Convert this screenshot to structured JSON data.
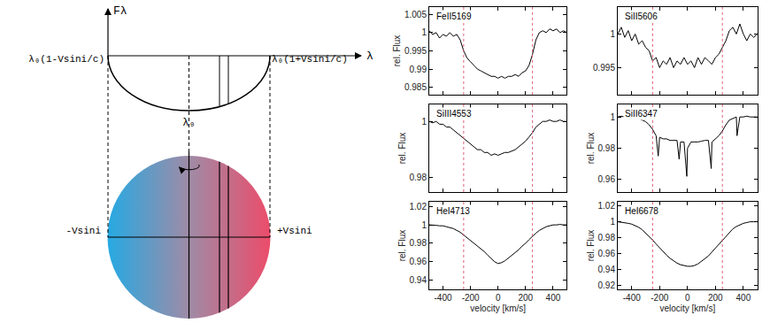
{
  "diagram": {
    "y_label": "Fλ",
    "x_label": "λ",
    "left_edge": "λ₀(1-Vsini/c)",
    "right_edge": "λ₀(1+Vsini/c)",
    "center": "λ₀",
    "left_velocity": "-Vsini",
    "right_velocity": "+Vsini"
  },
  "chart_data": [
    {
      "type": "line",
      "title": "FeII5169",
      "ylabel": "rel. Flux",
      "tick_labels": "y",
      "grid": false,
      "color": "#000000",
      "xlim": [
        -500,
        500
      ],
      "xticks": [
        -400,
        -200,
        0,
        200,
        400
      ],
      "ylim": [
        0.983,
        1.007
      ],
      "yticks": [
        0.985,
        0.99,
        0.995,
        1,
        1.005
      ],
      "vlines": [
        -250,
        250
      ],
      "x": [
        -500,
        -475,
        -450,
        -425,
        -400,
        -375,
        -350,
        -325,
        -300,
        -275,
        -250,
        -225,
        -200,
        -175,
        -150,
        -125,
        -100,
        -75,
        -50,
        -25,
        0,
        25,
        50,
        75,
        100,
        125,
        150,
        175,
        200,
        225,
        250,
        275,
        300,
        325,
        350,
        375,
        400,
        425,
        450,
        475,
        500
      ],
      "values": [
        1.0005,
        0.9995,
        1.0,
        0.9985,
        0.9995,
        0.999,
        1.0,
        0.999,
        0.9995,
        0.998,
        0.995,
        0.993,
        0.992,
        0.991,
        0.99,
        0.9895,
        0.989,
        0.9885,
        0.988,
        0.988,
        0.9875,
        0.988,
        0.9875,
        0.988,
        0.988,
        0.9885,
        0.988,
        0.989,
        0.9895,
        0.991,
        0.994,
        0.998,
        1.0,
        1.0005,
        1.0,
        1.001,
        1.0005,
        1.001,
        1.0,
        1.0005,
        1.0
      ]
    },
    {
      "type": "line",
      "title": "SiII5606",
      "tick_labels": "y",
      "grid": false,
      "color": "#000000",
      "xlim": [
        -500,
        500
      ],
      "xticks": [
        -400,
        -200,
        0,
        200,
        400
      ],
      "ylim": [
        0.991,
        1.004
      ],
      "yticks": [
        0.995,
        1
      ],
      "vlines": [
        -250,
        250
      ],
      "x": [
        -500,
        -475,
        -450,
        -425,
        -400,
        -375,
        -350,
        -325,
        -300,
        -275,
        -250,
        -225,
        -200,
        -175,
        -150,
        -125,
        -100,
        -75,
        -50,
        -25,
        0,
        25,
        50,
        75,
        100,
        125,
        150,
        175,
        200,
        225,
        250,
        275,
        300,
        325,
        350,
        375,
        400,
        425,
        450,
        475,
        500
      ],
      "values": [
        1.0,
        1.001,
        0.9995,
        1.0005,
        0.999,
        1.0,
        0.9985,
        0.999,
        0.998,
        0.9975,
        0.996,
        0.9965,
        0.995,
        0.996,
        0.9955,
        0.9965,
        0.995,
        0.996,
        0.9955,
        0.9965,
        0.9955,
        0.996,
        0.995,
        0.9965,
        0.9955,
        0.9965,
        0.996,
        0.9955,
        0.9965,
        0.997,
        0.998,
        0.999,
        1.0005,
        1.001,
        1.0,
        1.0015,
        1.0,
        0.999,
        1.0,
        0.9995,
        1.0
      ]
    },
    {
      "type": "line",
      "title": "SiIII4553",
      "ylabel": "rel. Flux",
      "tick_labels": "y",
      "grid": false,
      "color": "#000000",
      "xlim": [
        -500,
        500
      ],
      "xticks": [
        -400,
        -200,
        0,
        200,
        400
      ],
      "ylim": [
        0.975,
        1.006
      ],
      "yticks": [
        0.98,
        1
      ],
      "vlines": [
        -250,
        250
      ],
      "x": [
        -500,
        -475,
        -450,
        -425,
        -400,
        -375,
        -350,
        -325,
        -300,
        -275,
        -250,
        -225,
        -200,
        -175,
        -150,
        -125,
        -100,
        -75,
        -50,
        -25,
        0,
        25,
        50,
        75,
        100,
        125,
        150,
        175,
        200,
        225,
        250,
        275,
        300,
        325,
        350,
        375,
        400,
        425,
        450,
        475,
        500
      ],
      "values": [
        1.0,
        0.9995,
        1.0,
        0.999,
        0.999,
        0.998,
        0.998,
        0.997,
        0.996,
        0.995,
        0.994,
        0.993,
        0.992,
        0.991,
        0.99,
        0.99,
        0.989,
        0.989,
        0.988,
        0.9885,
        0.988,
        0.9885,
        0.989,
        0.989,
        0.9895,
        0.99,
        0.991,
        0.992,
        0.993,
        0.9945,
        0.996,
        0.998,
        0.999,
        1.0,
        1.0,
        1.0005,
        1.0,
        1.0,
        1.0005,
        1.0,
        1.0
      ]
    },
    {
      "type": "line",
      "title": "SiII6347",
      "ylabel": "rel. Flux",
      "tick_labels": "y",
      "grid": false,
      "color": "#000000",
      "xlim": [
        -500,
        500
      ],
      "xticks": [
        -400,
        -200,
        0,
        200,
        400
      ],
      "ylim": [
        0.952,
        1.008
      ],
      "yticks": [
        0.96,
        0.98,
        1
      ],
      "vlines": [
        -250,
        250
      ],
      "x": [
        -500,
        -475,
        -450,
        -425,
        -400,
        -375,
        -350,
        -325,
        -300,
        -275,
        -250,
        -225,
        -210,
        -200,
        -175,
        -150,
        -125,
        -100,
        -75,
        -60,
        -50,
        -25,
        -5,
        0,
        25,
        50,
        75,
        100,
        125,
        150,
        170,
        175,
        200,
        225,
        250,
        275,
        300,
        325,
        350,
        355,
        375,
        400,
        425,
        450,
        475,
        500
      ],
      "values": [
        1.0,
        1.0005,
        1.0,
        0.9995,
        1.0,
        0.999,
        0.999,
        0.998,
        0.997,
        0.995,
        0.992,
        0.988,
        0.975,
        0.987,
        0.986,
        0.986,
        0.985,
        0.985,
        0.985,
        0.973,
        0.984,
        0.984,
        0.962,
        0.98,
        0.984,
        0.984,
        0.984,
        0.9845,
        0.985,
        0.985,
        0.967,
        0.984,
        0.986,
        0.988,
        0.991,
        0.995,
        0.998,
        0.999,
        1.0,
        0.988,
        1.0,
        1.0,
        1.0005,
        1.0,
        1.0,
        1.0
      ]
    },
    {
      "type": "line",
      "title": "HeI4713",
      "ylabel": "rel. Flux",
      "xlabel": "velocity [km/s]",
      "grid": false,
      "color": "#000000",
      "xlim": [
        -500,
        500
      ],
      "xticks": [
        -400,
        -200,
        0,
        200,
        400
      ],
      "ylim": [
        0.93,
        1.025
      ],
      "yticks": [
        0.94,
        0.96,
        0.98,
        1,
        1.02
      ],
      "vlines": [
        -250,
        250
      ],
      "x": [
        -500,
        -475,
        -450,
        -425,
        -400,
        -375,
        -350,
        -325,
        -300,
        -275,
        -250,
        -225,
        -200,
        -175,
        -150,
        -125,
        -100,
        -75,
        -50,
        -25,
        0,
        25,
        50,
        75,
        100,
        125,
        150,
        175,
        200,
        225,
        250,
        275,
        300,
        325,
        350,
        375,
        400,
        425,
        450,
        475,
        500
      ],
      "values": [
        1.0,
        1.0,
        0.9995,
        0.999,
        0.999,
        0.998,
        0.997,
        0.996,
        0.994,
        0.992,
        0.989,
        0.986,
        0.983,
        0.98,
        0.977,
        0.974,
        0.971,
        0.967,
        0.963,
        0.96,
        0.958,
        0.959,
        0.961,
        0.964,
        0.967,
        0.97,
        0.973,
        0.977,
        0.98,
        0.984,
        0.988,
        0.991,
        0.994,
        0.996,
        0.998,
        0.999,
        1.0,
        1.0,
        1.0005,
        1.0,
        1.0
      ]
    },
    {
      "type": "line",
      "title": "HeI6678",
      "ylabel": "rel. Flux",
      "xlabel": "velocity [km/s]",
      "grid": false,
      "color": "#000000",
      "xlim": [
        -500,
        500
      ],
      "xticks": [
        -400,
        -200,
        0,
        200,
        400
      ],
      "ylim": [
        0.915,
        1.025
      ],
      "yticks": [
        0.92,
        0.94,
        0.96,
        0.98,
        1,
        1.02
      ],
      "vlines": [
        -250,
        250
      ],
      "x": [
        -500,
        -475,
        -450,
        -425,
        -400,
        -375,
        -350,
        -325,
        -300,
        -275,
        -250,
        -225,
        -200,
        -175,
        -150,
        -125,
        -100,
        -75,
        -50,
        -25,
        0,
        25,
        50,
        75,
        100,
        125,
        150,
        175,
        200,
        225,
        250,
        275,
        300,
        325,
        350,
        375,
        400,
        425,
        450,
        475,
        500
      ],
      "values": [
        1.0,
        0.9995,
        0.999,
        0.998,
        0.997,
        0.995,
        0.993,
        0.99,
        0.986,
        0.982,
        0.977,
        0.972,
        0.967,
        0.962,
        0.958,
        0.954,
        0.951,
        0.948,
        0.946,
        0.945,
        0.944,
        0.944,
        0.945,
        0.947,
        0.95,
        0.953,
        0.957,
        0.962,
        0.967,
        0.972,
        0.977,
        0.982,
        0.987,
        0.991,
        0.994,
        0.996,
        0.998,
        0.999,
        1.0,
        1.0,
        1.0
      ]
    }
  ]
}
